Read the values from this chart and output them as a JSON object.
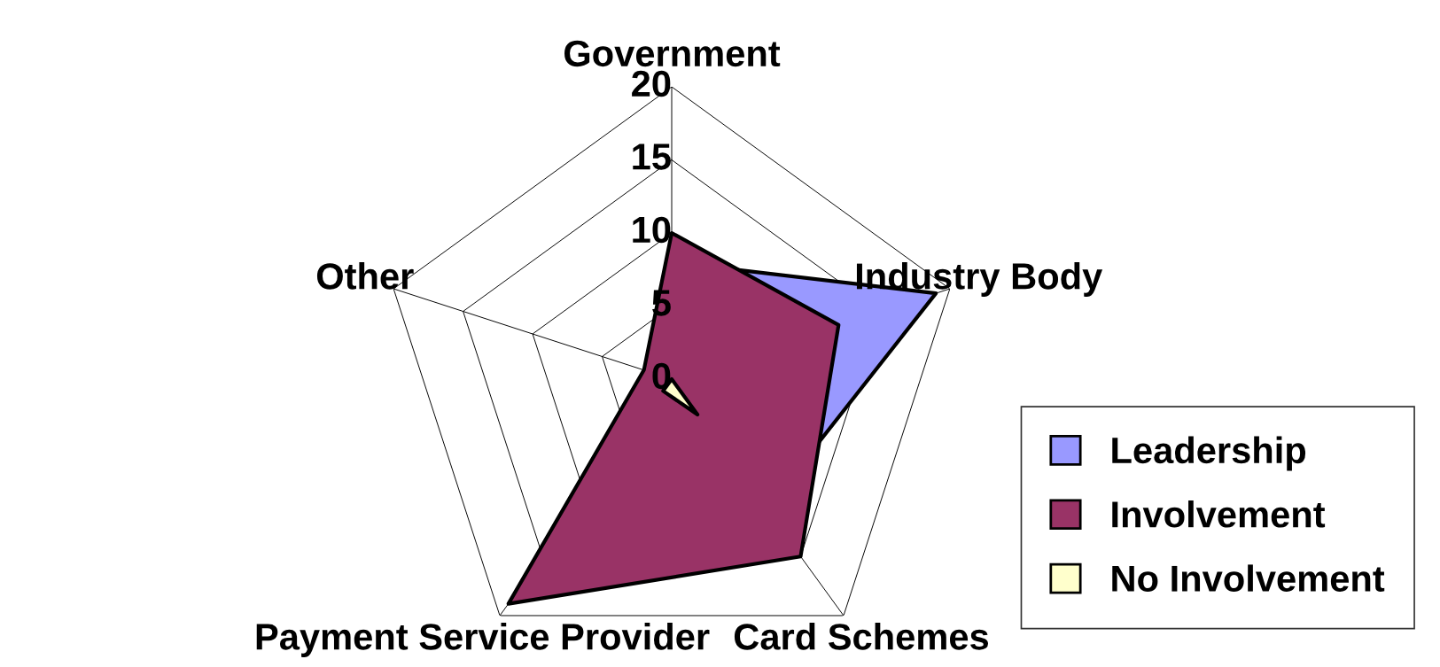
{
  "chart_data": {
    "type": "radar",
    "categories": [
      "Government",
      "Industry Body",
      "Card Schemes",
      "Payment Service Provider",
      "Other"
    ],
    "series": [
      {
        "name": "Leadership",
        "color": "#9999ff",
        "values": [
          8,
          19,
          11,
          null,
          0
        ]
      },
      {
        "name": "Involvement",
        "color": "#993366",
        "values": [
          10,
          12,
          15,
          19,
          2
        ]
      },
      {
        "name": "No Involvement",
        "color": "#ffffcc",
        "values": [
          0,
          0,
          3,
          1,
          0
        ]
      }
    ],
    "ylim": [
      0,
      20
    ],
    "yticks": [
      0,
      5,
      10,
      15,
      20
    ],
    "grid": true,
    "legend": "bottom right"
  }
}
